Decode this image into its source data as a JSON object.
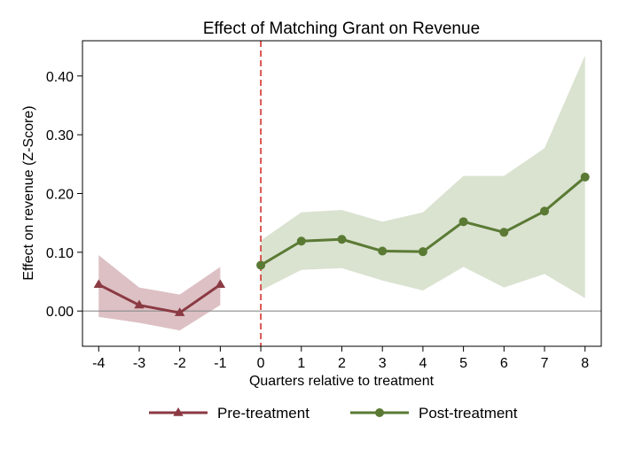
{
  "chart_data": {
    "type": "line",
    "title": "Effect of Matching Grant on Revenue",
    "xlabel": "Quarters relative to treatment",
    "ylabel": "Effect on revenue (Z-Score)",
    "xlim": [
      -4.4,
      8.4
    ],
    "ylim": [
      -0.06,
      0.46
    ],
    "x_ticks": [
      -4,
      -3,
      -2,
      -1,
      0,
      1,
      2,
      3,
      4,
      5,
      6,
      7,
      8
    ],
    "y_ticks": [
      0.0,
      0.1,
      0.2,
      0.3,
      0.4
    ],
    "y_tick_labels": [
      "0.00",
      "0.10",
      "0.20",
      "0.30",
      "0.40"
    ],
    "reference_lines": {
      "horizontal_y": 0,
      "vertical_x": 0
    },
    "grid": false,
    "legend_position": "bottom",
    "series": [
      {
        "name": "Pre-treatment",
        "color": "#8b3a43",
        "band_color": "#ddc0c4",
        "marker": "triangle",
        "x": [
          -4,
          -3,
          -2,
          -1
        ],
        "values": [
          0.045,
          0.01,
          -0.003,
          0.045
        ],
        "ci_lower": [
          -0.01,
          -0.02,
          -0.033,
          0.01
        ],
        "ci_upper": [
          0.095,
          0.04,
          0.028,
          0.075
        ]
      },
      {
        "name": "Post-treatment",
        "color": "#5a7a34",
        "band_color": "#dae2d0",
        "marker": "circle",
        "x": [
          0,
          1,
          2,
          3,
          4,
          5,
          6,
          7,
          8
        ],
        "values": [
          0.078,
          0.119,
          0.122,
          0.102,
          0.101,
          0.152,
          0.134,
          0.17,
          0.228
        ],
        "ci_lower": [
          0.035,
          0.07,
          0.073,
          0.052,
          0.035,
          0.075,
          0.04,
          0.063,
          0.022
        ],
        "ci_upper": [
          0.12,
          0.168,
          0.172,
          0.152,
          0.168,
          0.23,
          0.23,
          0.277,
          0.435
        ]
      }
    ]
  }
}
